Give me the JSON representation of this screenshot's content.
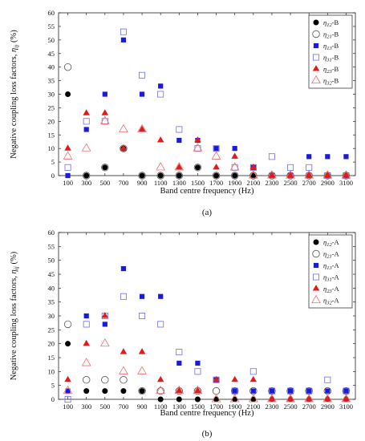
{
  "chart_data": [
    {
      "type": "scatter",
      "caption": "(a)",
      "xlabel": "Band centre frequency (Hz)",
      "ylabel": "Negative coupling loss factors, η_ij (%)",
      "ylim": [
        0,
        60
      ],
      "yticks": [
        0,
        5,
        10,
        15,
        20,
        25,
        30,
        35,
        40,
        45,
        50,
        55,
        60
      ],
      "x": [
        100,
        300,
        500,
        700,
        900,
        1100,
        1300,
        1500,
        1700,
        1900,
        2100,
        2300,
        2500,
        2700,
        2900,
        3100
      ],
      "legend_position": "top-right",
      "series": [
        {
          "name": "η12-B",
          "values": [
            30,
            0,
            3,
            10,
            0,
            0,
            0,
            3,
            0,
            0,
            0,
            0,
            0,
            0,
            0,
            0
          ]
        },
        {
          "name": "η21-B",
          "values": [
            40,
            0,
            3,
            10,
            0,
            0,
            0,
            3,
            0,
            0,
            0,
            0,
            0,
            0,
            0,
            0
          ]
        },
        {
          "name": "η13-B",
          "values": [
            0,
            17,
            30,
            50,
            30,
            33,
            13,
            13,
            10,
            10,
            3,
            0,
            0,
            7,
            7,
            7
          ]
        },
        {
          "name": "η31-B",
          "values": [
            3,
            20,
            20,
            53,
            37,
            30,
            17,
            10,
            10,
            3,
            3,
            7,
            3,
            3,
            0,
            0
          ]
        },
        {
          "name": "η23-B",
          "values": [
            10,
            23,
            23,
            10,
            17,
            13,
            3,
            13,
            3,
            7,
            3,
            0,
            0,
            0,
            0,
            0
          ]
        },
        {
          "name": "η32-B",
          "values": [
            7,
            10,
            20,
            17,
            17,
            3,
            3,
            10,
            7,
            3,
            0,
            0,
            0,
            0,
            0,
            0
          ]
        }
      ]
    },
    {
      "type": "scatter",
      "caption": "(b)",
      "xlabel": "Band centre frequency (Hz)",
      "ylabel": "Negative coupling loss factors, η_ij (%)",
      "ylim": [
        0,
        60
      ],
      "yticks": [
        0,
        5,
        10,
        15,
        20,
        25,
        30,
        35,
        40,
        45,
        50,
        55,
        60
      ],
      "x": [
        100,
        300,
        500,
        700,
        900,
        1100,
        1300,
        1500,
        1700,
        1900,
        2100,
        2300,
        2500,
        2700,
        2900,
        3100
      ],
      "legend_position": "top-right",
      "series": [
        {
          "name": "η12-A",
          "values": [
            20,
            3,
            3,
            3,
            3,
            0,
            0,
            0,
            0,
            0,
            0,
            0,
            0,
            0,
            0,
            0
          ]
        },
        {
          "name": "η21-A",
          "values": [
            27,
            7,
            7,
            7,
            3,
            3,
            3,
            3,
            3,
            3,
            3,
            3,
            3,
            3,
            3,
            3
          ]
        },
        {
          "name": "η13-A",
          "values": [
            3,
            30,
            27,
            47,
            37,
            37,
            13,
            13,
            7,
            3,
            3,
            3,
            3,
            3,
            3,
            3
          ]
        },
        {
          "name": "η31-A",
          "values": [
            0,
            27,
            30,
            37,
            30,
            27,
            17,
            10,
            7,
            3,
            10,
            3,
            3,
            3,
            7,
            3
          ]
        },
        {
          "name": "η23-A",
          "values": [
            7,
            20,
            30,
            17,
            17,
            7,
            3,
            3,
            7,
            7,
            7,
            0,
            0,
            0,
            0,
            0
          ]
        },
        {
          "name": "η32-A",
          "values": [
            3,
            13,
            20,
            10,
            10,
            3,
            3,
            3,
            0,
            0,
            0,
            0,
            0,
            0,
            0,
            0
          ]
        }
      ]
    }
  ]
}
